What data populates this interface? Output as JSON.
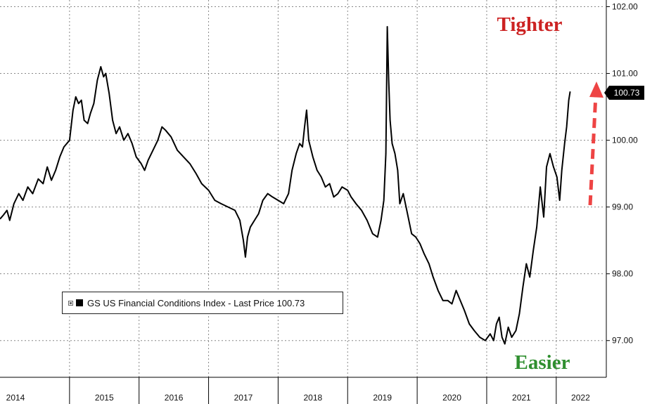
{
  "chart_data": {
    "type": "line",
    "title": "",
    "xlabel": "",
    "ylabel": "",
    "legend": "GS US Financial Conditions Index - Last Price 100.73",
    "last_price_label": "100.73",
    "annotations": {
      "tighter": "Tighter",
      "easier": "Easier"
    },
    "colors": {
      "line": "#000000",
      "tighter": "#cc2222",
      "easier": "#2f8f2f",
      "arrow": "#ee4444"
    },
    "ylim": [
      96.45,
      102.1
    ],
    "y_ticks": [
      "97.00",
      "98.00",
      "99.00",
      "100.00",
      "101.00",
      "102.00"
    ],
    "x_years": [
      "2014",
      "2015",
      "2016",
      "2017",
      "2018",
      "2019",
      "2020",
      "2021",
      "2022"
    ],
    "x_range": [
      2014.0,
      2022.7
    ],
    "series": [
      {
        "values": [
          [
            2014.0,
            98.82
          ],
          [
            2014.05,
            98.88
          ],
          [
            2014.1,
            98.95
          ],
          [
            2014.14,
            98.8
          ],
          [
            2014.2,
            99.05
          ],
          [
            2014.27,
            99.2
          ],
          [
            2014.33,
            99.1
          ],
          [
            2014.4,
            99.3
          ],
          [
            2014.47,
            99.2
          ],
          [
            2014.55,
            99.42
          ],
          [
            2014.62,
            99.35
          ],
          [
            2014.68,
            99.6
          ],
          [
            2014.74,
            99.4
          ],
          [
            2014.8,
            99.55
          ],
          [
            2014.86,
            99.75
          ],
          [
            2014.92,
            99.9
          ],
          [
            2015.0,
            100.0
          ],
          [
            2015.05,
            100.45
          ],
          [
            2015.09,
            100.65
          ],
          [
            2015.13,
            100.55
          ],
          [
            2015.17,
            100.6
          ],
          [
            2015.21,
            100.3
          ],
          [
            2015.26,
            100.25
          ],
          [
            2015.3,
            100.4
          ],
          [
            2015.35,
            100.55
          ],
          [
            2015.4,
            100.9
          ],
          [
            2015.45,
            101.1
          ],
          [
            2015.49,
            100.95
          ],
          [
            2015.52,
            101.0
          ],
          [
            2015.57,
            100.7
          ],
          [
            2015.62,
            100.3
          ],
          [
            2015.67,
            100.1
          ],
          [
            2015.72,
            100.2
          ],
          [
            2015.78,
            100.0
          ],
          [
            2015.84,
            100.1
          ],
          [
            2015.9,
            99.95
          ],
          [
            2015.96,
            99.75
          ],
          [
            2016.03,
            99.65
          ],
          [
            2016.08,
            99.55
          ],
          [
            2016.13,
            99.7
          ],
          [
            2016.2,
            99.85
          ],
          [
            2016.27,
            100.0
          ],
          [
            2016.33,
            100.2
          ],
          [
            2016.38,
            100.15
          ],
          [
            2016.46,
            100.05
          ],
          [
            2016.55,
            99.85
          ],
          [
            2016.64,
            99.75
          ],
          [
            2016.73,
            99.65
          ],
          [
            2016.82,
            99.5
          ],
          [
            2016.9,
            99.35
          ],
          [
            2017.0,
            99.25
          ],
          [
            2017.09,
            99.1
          ],
          [
            2017.18,
            99.05
          ],
          [
            2017.28,
            99.0
          ],
          [
            2017.38,
            98.95
          ],
          [
            2017.45,
            98.8
          ],
          [
            2017.5,
            98.5
          ],
          [
            2017.53,
            98.25
          ],
          [
            2017.56,
            98.55
          ],
          [
            2017.6,
            98.7
          ],
          [
            2017.66,
            98.8
          ],
          [
            2017.72,
            98.9
          ],
          [
            2017.78,
            99.1
          ],
          [
            2017.85,
            99.2
          ],
          [
            2017.92,
            99.15
          ],
          [
            2018.0,
            99.1
          ],
          [
            2018.08,
            99.05
          ],
          [
            2018.15,
            99.2
          ],
          [
            2018.2,
            99.55
          ],
          [
            2018.26,
            99.8
          ],
          [
            2018.31,
            99.95
          ],
          [
            2018.35,
            99.9
          ],
          [
            2018.38,
            100.2
          ],
          [
            2018.41,
            100.45
          ],
          [
            2018.44,
            100.0
          ],
          [
            2018.5,
            99.75
          ],
          [
            2018.56,
            99.55
          ],
          [
            2018.62,
            99.45
          ],
          [
            2018.68,
            99.3
          ],
          [
            2018.74,
            99.35
          ],
          [
            2018.8,
            99.15
          ],
          [
            2018.86,
            99.2
          ],
          [
            2018.92,
            99.3
          ],
          [
            2019.0,
            99.25
          ],
          [
            2019.05,
            99.15
          ],
          [
            2019.12,
            99.05
          ],
          [
            2019.2,
            98.95
          ],
          [
            2019.28,
            98.8
          ],
          [
            2019.36,
            98.6
          ],
          [
            2019.43,
            98.55
          ],
          [
            2019.48,
            98.8
          ],
          [
            2019.52,
            99.1
          ],
          [
            2019.55,
            99.8
          ],
          [
            2019.57,
            101.7
          ],
          [
            2019.59,
            100.9
          ],
          [
            2019.61,
            100.3
          ],
          [
            2019.64,
            99.95
          ],
          [
            2019.68,
            99.8
          ],
          [
            2019.72,
            99.55
          ],
          [
            2019.75,
            99.05
          ],
          [
            2019.8,
            99.2
          ],
          [
            2019.86,
            98.9
          ],
          [
            2019.92,
            98.6
          ],
          [
            2019.98,
            98.55
          ],
          [
            2020.04,
            98.45
          ],
          [
            2020.1,
            98.3
          ],
          [
            2020.17,
            98.15
          ],
          [
            2020.23,
            97.95
          ],
          [
            2020.3,
            97.75
          ],
          [
            2020.37,
            97.6
          ],
          [
            2020.44,
            97.6
          ],
          [
            2020.5,
            97.55
          ],
          [
            2020.56,
            97.75
          ],
          [
            2020.62,
            97.6
          ],
          [
            2020.68,
            97.45
          ],
          [
            2020.75,
            97.25
          ],
          [
            2020.82,
            97.15
          ],
          [
            2020.9,
            97.05
          ],
          [
            2020.98,
            97.0
          ],
          [
            2021.05,
            97.1
          ],
          [
            2021.1,
            97.0
          ],
          [
            2021.14,
            97.25
          ],
          [
            2021.18,
            97.35
          ],
          [
            2021.22,
            97.05
          ],
          [
            2021.26,
            96.95
          ],
          [
            2021.31,
            97.2
          ],
          [
            2021.36,
            97.05
          ],
          [
            2021.42,
            97.15
          ],
          [
            2021.47,
            97.4
          ],
          [
            2021.52,
            97.8
          ],
          [
            2021.57,
            98.15
          ],
          [
            2021.62,
            97.95
          ],
          [
            2021.67,
            98.35
          ],
          [
            2021.72,
            98.7
          ],
          [
            2021.77,
            99.3
          ],
          [
            2021.82,
            98.85
          ],
          [
            2021.86,
            99.6
          ],
          [
            2021.91,
            99.8
          ],
          [
            2021.96,
            99.6
          ],
          [
            2022.01,
            99.45
          ],
          [
            2022.05,
            99.1
          ],
          [
            2022.08,
            99.55
          ],
          [
            2022.12,
            99.95
          ],
          [
            2022.15,
            100.2
          ],
          [
            2022.18,
            100.6
          ],
          [
            2022.2,
            100.73
          ]
        ]
      }
    ]
  }
}
